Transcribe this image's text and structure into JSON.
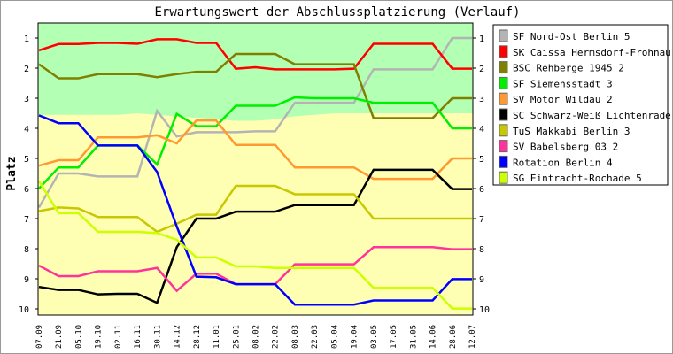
{
  "chart_data": {
    "type": "line",
    "title": "Erwartungswert der Abschlussplatzierung (Verlauf)",
    "ylabel": "Platz",
    "xlabel": "",
    "ylim": [
      1,
      10
    ],
    "y_reversed": true,
    "yticks": [
      "1",
      "2",
      "3",
      "4",
      "5",
      "6",
      "7",
      "8",
      "9",
      "10"
    ],
    "x": [
      "07.09",
      "21.09",
      "05.10",
      "19.10",
      "02.11",
      "16.11",
      "30.11",
      "14.12",
      "28.12",
      "11.01",
      "25.01",
      "08.02",
      "22.02",
      "08.03",
      "22.03",
      "05.04",
      "19.04",
      "03.05",
      "17.05",
      "31.05",
      "14.06",
      "28.06",
      "12.07"
    ],
    "background_zones": {
      "upper_color": "#b3ffb3",
      "lower_color": "#ffffb3",
      "boundary": [
        3.55,
        3.55,
        3.55,
        3.55,
        3.55,
        3.5,
        3.55,
        3.6,
        3.65,
        3.7,
        3.75,
        3.75,
        3.7,
        3.6,
        3.55,
        3.5,
        3.5,
        3.5,
        3.5,
        3.5,
        3.5,
        3.5,
        3.5
      ]
    },
    "legend_position": "right",
    "series": [
      {
        "name": "SF Nord-Ost Berlin 5",
        "color": "#b4b4b4",
        "values": [
          6.63,
          5.5,
          5.5,
          5.6,
          5.6,
          5.6,
          3.42,
          4.27,
          4.13,
          4.13,
          4.13,
          4.1,
          4.1,
          3.15,
          3.15,
          3.15,
          3.15,
          2.04,
          2.04,
          2.04,
          2.04,
          1.0,
          1.0
        ]
      },
      {
        "name": "SK Caissa Hermsdorf-Frohnau 3",
        "color": "#ff0000",
        "values": [
          1.41,
          1.2,
          1.2,
          1.16,
          1.16,
          1.19,
          1.04,
          1.04,
          1.16,
          1.16,
          2.02,
          1.97,
          2.04,
          2.04,
          2.04,
          2.04,
          2.02,
          1.19,
          1.19,
          1.19,
          1.19,
          2.02,
          2.02
        ]
      },
      {
        "name": "BSC Rehberge 1945 2",
        "color": "#808000",
        "values": [
          1.87,
          2.34,
          2.34,
          2.2,
          2.2,
          2.2,
          2.3,
          2.2,
          2.12,
          2.12,
          1.53,
          1.53,
          1.53,
          1.87,
          1.87,
          1.87,
          1.87,
          3.66,
          3.66,
          3.66,
          3.66,
          3.0,
          3.0
        ]
      },
      {
        "name": "SF Siemensstadt 3",
        "color": "#00ee00",
        "values": [
          6.0,
          5.3,
          5.3,
          4.57,
          4.57,
          4.57,
          5.2,
          3.52,
          3.93,
          3.93,
          3.25,
          3.25,
          3.25,
          2.97,
          3.0,
          3.0,
          3.0,
          3.15,
          3.15,
          3.15,
          3.15,
          4.0,
          4.0
        ]
      },
      {
        "name": "SV Motor Wildau 2",
        "color": "#ff9933",
        "values": [
          5.24,
          5.06,
          5.06,
          4.3,
          4.3,
          4.3,
          4.23,
          4.5,
          3.74,
          3.74,
          4.55,
          4.55,
          4.55,
          5.3,
          5.3,
          5.3,
          5.3,
          5.68,
          5.68,
          5.68,
          5.68,
          5.0,
          5.0
        ]
      },
      {
        "name": "SC Schwarz-Weiß Lichtenrade 5",
        "color": "#000000",
        "values": [
          9.27,
          9.37,
          9.37,
          9.52,
          9.5,
          9.5,
          9.8,
          7.95,
          7.0,
          7.0,
          6.77,
          6.77,
          6.77,
          6.55,
          6.55,
          6.55,
          6.55,
          5.38,
          5.38,
          5.38,
          5.38,
          6.02,
          6.02
        ]
      },
      {
        "name": "TuS Makkabi Berlin 3",
        "color": "#c8c800",
        "values": [
          6.75,
          6.63,
          6.66,
          6.95,
          6.95,
          6.95,
          7.44,
          7.17,
          6.87,
          6.87,
          5.91,
          5.91,
          5.91,
          6.19,
          6.19,
          6.19,
          6.19,
          7.0,
          7.0,
          7.0,
          7.0,
          7.0,
          7.0
        ]
      },
      {
        "name": "SV Babelsberg 03 2",
        "color": "#ff3399",
        "values": [
          8.56,
          8.91,
          8.91,
          8.75,
          8.75,
          8.75,
          8.64,
          9.4,
          8.83,
          8.83,
          9.18,
          9.18,
          9.18,
          8.52,
          8.52,
          8.52,
          8.52,
          7.95,
          7.95,
          7.95,
          7.95,
          8.02,
          8.02
        ]
      },
      {
        "name": "Rotation Berlin 4",
        "color": "#0000ff",
        "values": [
          3.57,
          3.83,
          3.83,
          4.57,
          4.57,
          4.57,
          5.45,
          7.26,
          8.93,
          8.95,
          9.18,
          9.18,
          9.18,
          9.86,
          9.86,
          9.86,
          9.86,
          9.72,
          9.72,
          9.72,
          9.72,
          9.01,
          9.01
        ]
      },
      {
        "name": "SG Eintracht-Rochade 5",
        "color": "#ccff00",
        "values": [
          5.75,
          6.82,
          6.82,
          7.44,
          7.44,
          7.44,
          7.48,
          7.7,
          8.29,
          8.29,
          8.59,
          8.59,
          8.64,
          8.64,
          8.64,
          8.64,
          8.64,
          9.3,
          9.3,
          9.3,
          9.3,
          9.99,
          9.99
        ]
      }
    ]
  }
}
